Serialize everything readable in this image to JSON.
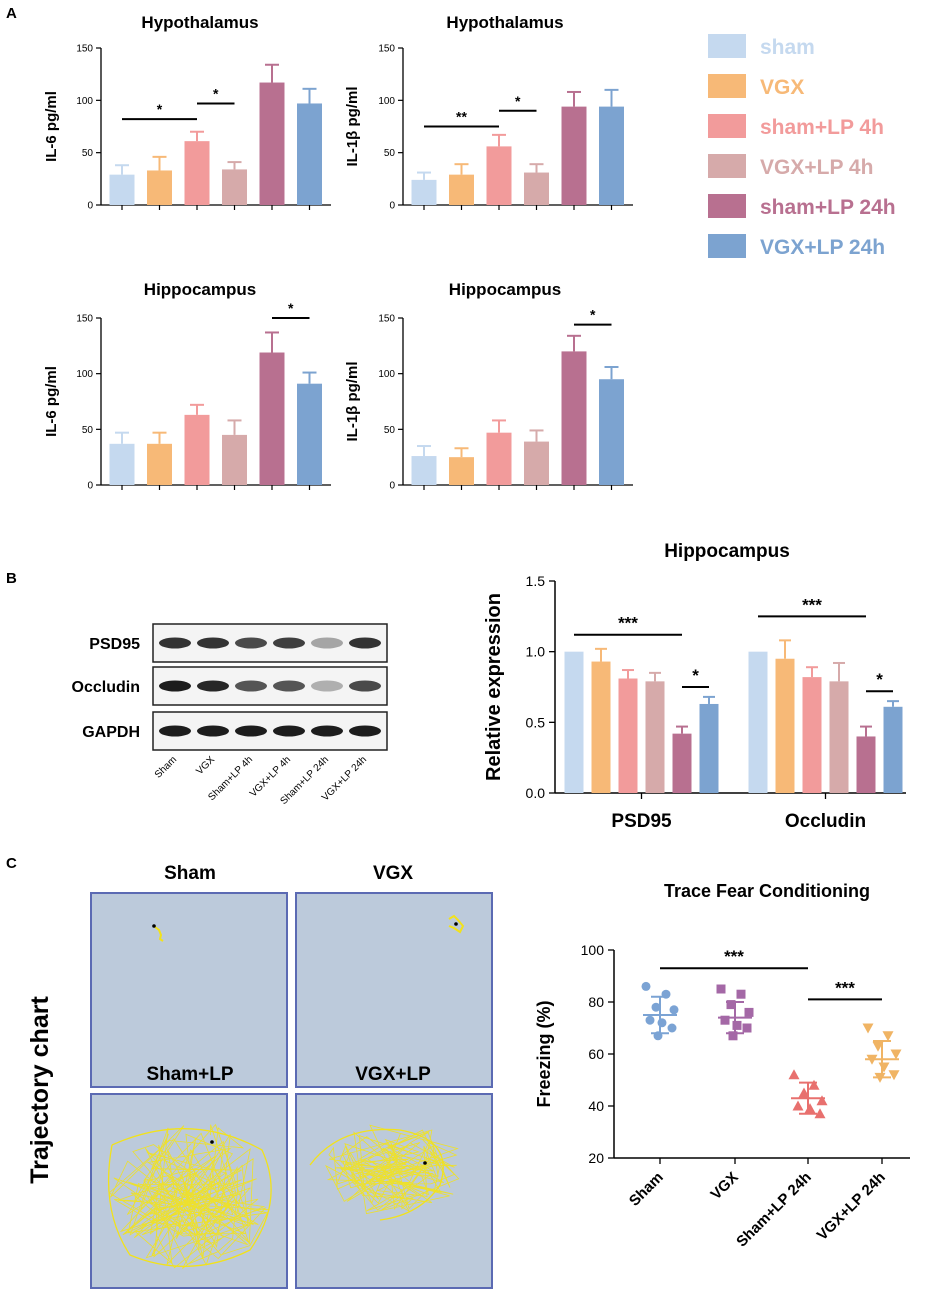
{
  "colors": {
    "sham": "#c5d9ef",
    "VGX": "#f7b977",
    "sham+LP 4h": "#f29b9b",
    "VGX+LP 4h": "#d6aaaa",
    "sham+LP 24h": "#b87090",
    "VGX+LP 24h": "#7ca3d0",
    "scatter_sham": "#7ba3d4",
    "scatter_vgx": "#a468a6",
    "scatter_shamlp": "#e8706e",
    "scatter_vgxlp": "#f0b464",
    "maze_fill": "#bccadb",
    "maze_border": "#5b6ab3",
    "track": "#f2e21a"
  },
  "panels": {
    "A": "A",
    "B": "B",
    "C": "C"
  },
  "legend": [
    "sham",
    "VGX",
    "sham+LP 4h",
    "VGX+LP 4h",
    "sham+LP 24h",
    "VGX+LP 24h"
  ],
  "western_blot": {
    "bands": [
      "PSD95",
      "Occludin",
      "GAPDH"
    ],
    "lanes": [
      "Sham",
      "VGX",
      "Sham+LP 4h",
      "VGX+LP 4h",
      "Sham+LP 24h",
      "VGX+LP 24h"
    ]
  },
  "trajectory": {
    "side_label": "Trajectory chart",
    "titles": [
      "Sham",
      "VGX",
      "Sham+LP",
      "VGX+LP"
    ]
  },
  "chart_data": [
    {
      "id": "A1",
      "type": "bar",
      "title": "Hypothalamus",
      "ylabel": "IL-6 pg/ml",
      "categories": [
        "sham",
        "VGX",
        "sham+LP 4h",
        "VGX+LP 4h",
        "sham+LP 24h",
        "VGX+LP 24h"
      ],
      "values": [
        29,
        33,
        61,
        34,
        117,
        97
      ],
      "errors": [
        9,
        13,
        9,
        7,
        17,
        14
      ],
      "ylim": [
        0,
        150
      ],
      "yticks": [
        "0",
        "50",
        "100",
        "150"
      ],
      "significance": [
        {
          "from": 0,
          "to": 2,
          "label": "*",
          "level": 82
        },
        {
          "from": 2,
          "to": 3,
          "label": "*",
          "level": 97
        }
      ]
    },
    {
      "id": "A2",
      "type": "bar",
      "title": "Hypothalamus",
      "ylabel": "IL-1β  pg/ml",
      "categories": [
        "sham",
        "VGX",
        "sham+LP 4h",
        "VGX+LP 4h",
        "sham+LP 24h",
        "VGX+LP 24h"
      ],
      "values": [
        24,
        29,
        56,
        31,
        94,
        94
      ],
      "errors": [
        7,
        10,
        11,
        8,
        14,
        16
      ],
      "ylim": [
        0,
        150
      ],
      "yticks": [
        "0",
        "50",
        "100",
        "150"
      ],
      "significance": [
        {
          "from": 0,
          "to": 2,
          "label": "**",
          "level": 75
        },
        {
          "from": 2,
          "to": 3,
          "label": "*",
          "level": 90
        }
      ]
    },
    {
      "id": "A3",
      "type": "bar",
      "title": "Hippocampus",
      "ylabel": "IL-6 pg/ml",
      "categories": [
        "sham",
        "VGX",
        "sham+LP 4h",
        "VGX+LP 4h",
        "sham+LP 24h",
        "VGX+LP 24h"
      ],
      "values": [
        37,
        37,
        63,
        45,
        119,
        91
      ],
      "errors": [
        10,
        10,
        9,
        13,
        18,
        10
      ],
      "ylim": [
        0,
        150
      ],
      "yticks": [
        "0",
        "50",
        "100",
        "150"
      ],
      "significance": [
        {
          "from": 4,
          "to": 5,
          "label": "*",
          "level": 150
        }
      ]
    },
    {
      "id": "A4",
      "type": "bar",
      "title": "Hippocampus",
      "ylabel": "IL-1β  pg/ml",
      "categories": [
        "sham",
        "VGX",
        "sham+LP 4h",
        "VGX+LP 4h",
        "sham+LP 24h",
        "VGX+LP 24h"
      ],
      "values": [
        26,
        25,
        47,
        39,
        120,
        95
      ],
      "errors": [
        9,
        8,
        11,
        10,
        14,
        11
      ],
      "ylim": [
        0,
        150
      ],
      "yticks": [
        "0",
        "50",
        "100",
        "150"
      ],
      "significance": [
        {
          "from": 4,
          "to": 5,
          "label": "*",
          "level": 144
        }
      ]
    },
    {
      "id": "B",
      "type": "bar",
      "title": "Hippocampus",
      "ylabel": "Relative expression",
      "groups": [
        "PSD95",
        "Occludin"
      ],
      "series": [
        {
          "name": "sham",
          "values": [
            1.0,
            1.0
          ],
          "errors": [
            0,
            0
          ]
        },
        {
          "name": "VGX",
          "values": [
            0.93,
            0.95
          ],
          "errors": [
            0.09,
            0.13
          ]
        },
        {
          "name": "sham+LP 4h",
          "values": [
            0.81,
            0.82
          ],
          "errors": [
            0.06,
            0.07
          ]
        },
        {
          "name": "VGX+LP 4h",
          "values": [
            0.79,
            0.79
          ],
          "errors": [
            0.06,
            0.13
          ]
        },
        {
          "name": "sham+LP 24h",
          "values": [
            0.42,
            0.4
          ],
          "errors": [
            0.05,
            0.07
          ]
        },
        {
          "name": "VGX+LP 24h",
          "values": [
            0.63,
            0.61
          ],
          "errors": [
            0.05,
            0.04
          ]
        }
      ],
      "ylim": [
        0,
        1.5
      ],
      "yticks": [
        "0.0",
        "0.5",
        "1.0",
        "1.5"
      ],
      "significance": [
        {
          "group": 0,
          "from": 0,
          "to": 4,
          "label": "***",
          "level": 1.12
        },
        {
          "group": 0,
          "from": 4,
          "to": 5,
          "label": "*",
          "level": 0.75
        },
        {
          "group": 1,
          "from": 0,
          "to": 4,
          "label": "***",
          "level": 1.25
        },
        {
          "group": 1,
          "from": 4,
          "to": 5,
          "label": "*",
          "level": 0.72
        }
      ]
    },
    {
      "id": "C",
      "type": "scatter",
      "title": "Trace Fear Conditioning",
      "ylabel": "Freezing (%)",
      "categories": [
        "Sham",
        "VGX",
        "Sham+LP 24h",
        "VGX+LP 24h"
      ],
      "markers": [
        "circle",
        "square",
        "triangle-up",
        "triangle-down"
      ],
      "points": [
        [
          86,
          83,
          78,
          77,
          73,
          72,
          70,
          67
        ],
        [
          85,
          83,
          79,
          76,
          73,
          71,
          70,
          67
        ],
        [
          52,
          48,
          45,
          42,
          40,
          39,
          37
        ],
        [
          70,
          67,
          63,
          60,
          58,
          55,
          52,
          51
        ]
      ],
      "mean": [
        75,
        74,
        43,
        58
      ],
      "sd": [
        7,
        6,
        6,
        7
      ],
      "ylim": [
        20,
        100
      ],
      "yticks": [
        "20",
        "40",
        "60",
        "80",
        "100"
      ],
      "significance": [
        {
          "from": 0,
          "to": 2,
          "label": "***",
          "level": 93
        },
        {
          "from": 2,
          "to": 3,
          "label": "***",
          "level": 81
        }
      ]
    }
  ]
}
